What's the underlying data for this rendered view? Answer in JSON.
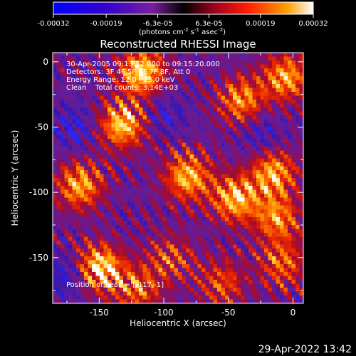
{
  "chart_data": {
    "type": "heatmap",
    "title": "Reconstructed RHESSI Image",
    "xlabel": "Heliocentric X (arcsec)",
    "ylabel": "Heliocentric Y (arcsec)",
    "xlim": [
      -186,
      8
    ],
    "ylim": [
      -185,
      7
    ],
    "x_ticks": [
      -150,
      -100,
      -50,
      0
    ],
    "x_tick_labels": [
      "-150",
      "-100",
      "-50",
      "0"
    ],
    "y_ticks": [
      0,
      -50,
      -100,
      -150
    ],
    "y_tick_labels": [
      "0",
      "-50",
      "-100",
      "-150"
    ],
    "colorbar": {
      "range": [
        -0.00032,
        0.00032
      ],
      "ticks": [
        -0.00032,
        -0.00019,
        -6.3e-05,
        6.3e-05,
        0.00019,
        0.00032
      ],
      "tick_labels": [
        "-0.00032",
        "-0.00019",
        "-6.3e-05",
        "6.3e-05",
        "0.00019",
        "0.00032"
      ],
      "units_label": "(photons cm-2 s-1 asec-2)"
    },
    "header_lines": [
      "30-Apr-2005 09:13:52.000 to 09:15:20.000",
      "Detectors: 3F 4F 5F 6F 7F 8F, Att 0",
      "Energy Range: 12.0 - 25.0 keV",
      "Clean    Total counts: 3.14E+03"
    ],
    "annotation": "Position of Peak = [-117,-1]",
    "peak_position": [
      -117,
      -1
    ],
    "hotspots": [
      {
        "x": -150,
        "y": -158,
        "intensity": 1.0
      },
      {
        "x": -117,
        "y": -8,
        "intensity": 0.95
      },
      {
        "x": -132,
        "y": -48,
        "intensity": 0.9
      },
      {
        "x": -165,
        "y": -95,
        "intensity": 0.8
      },
      {
        "x": -82,
        "y": -88,
        "intensity": 0.85
      },
      {
        "x": -45,
        "y": -105,
        "intensity": 0.85
      },
      {
        "x": -40,
        "y": -30,
        "intensity": 0.75
      },
      {
        "x": -15,
        "y": -85,
        "intensity": 0.8
      },
      {
        "x": -5,
        "y": -12,
        "intensity": 0.8
      },
      {
        "x": -12,
        "y": -120,
        "intensity": 0.7
      },
      {
        "x": -8,
        "y": -155,
        "intensity": 0.6
      },
      {
        "x": -120,
        "y": -175,
        "intensity": 0.6
      },
      {
        "x": -55,
        "y": -170,
        "intensity": 0.55
      },
      {
        "x": -95,
        "y": -150,
        "intensity": 0.5
      }
    ],
    "coldspots": [
      {
        "x": -170,
        "y": -50,
        "intensity": 0.5
      },
      {
        "x": -175,
        "y": -165,
        "intensity": 0.6
      },
      {
        "x": -100,
        "y": -40,
        "intensity": 0.4
      },
      {
        "x": -25,
        "y": -55,
        "intensity": 0.4
      }
    ]
  },
  "footer": {
    "timestamp": "29-Apr-2022 13:42"
  }
}
